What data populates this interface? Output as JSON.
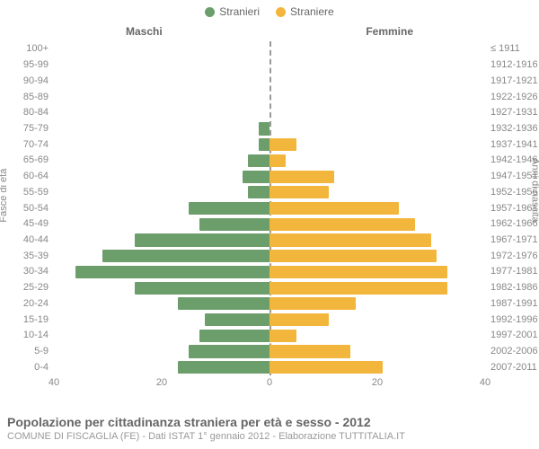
{
  "legend": {
    "male": {
      "label": "Stranieri",
      "color": "#6c9e6c"
    },
    "female": {
      "label": "Straniere",
      "color": "#f3b63c"
    }
  },
  "column_headers": {
    "male": "Maschi",
    "female": "Femmine"
  },
  "y_axis_left_title": "Fasce di età",
  "y_axis_right_title": "Anni di nascita",
  "x_axis": {
    "max": 40,
    "ticks_left": [
      40,
      20,
      0
    ],
    "ticks_right": [
      0,
      20,
      40
    ],
    "tick_labels_left": [
      "40",
      "20",
      "0"
    ],
    "tick_labels_right": [
      "0",
      "20",
      "40"
    ]
  },
  "grid_color": "#e0e0e0",
  "background_color": "#ffffff",
  "label_fontsize": 11,
  "rows": [
    {
      "age": "100+",
      "birth": "≤ 1911",
      "m": 0,
      "f": 0
    },
    {
      "age": "95-99",
      "birth": "1912-1916",
      "m": 0,
      "f": 0
    },
    {
      "age": "90-94",
      "birth": "1917-1921",
      "m": 0,
      "f": 0
    },
    {
      "age": "85-89",
      "birth": "1922-1926",
      "m": 0,
      "f": 0
    },
    {
      "age": "80-84",
      "birth": "1927-1931",
      "m": 0,
      "f": 0
    },
    {
      "age": "75-79",
      "birth": "1932-1936",
      "m": 2,
      "f": 0
    },
    {
      "age": "70-74",
      "birth": "1937-1941",
      "m": 2,
      "f": 5
    },
    {
      "age": "65-69",
      "birth": "1942-1946",
      "m": 4,
      "f": 3
    },
    {
      "age": "60-64",
      "birth": "1947-1951",
      "m": 5,
      "f": 12
    },
    {
      "age": "55-59",
      "birth": "1952-1956",
      "m": 4,
      "f": 11
    },
    {
      "age": "50-54",
      "birth": "1957-1961",
      "m": 15,
      "f": 24
    },
    {
      "age": "45-49",
      "birth": "1962-1966",
      "m": 13,
      "f": 27
    },
    {
      "age": "40-44",
      "birth": "1967-1971",
      "m": 25,
      "f": 30
    },
    {
      "age": "35-39",
      "birth": "1972-1976",
      "m": 31,
      "f": 31
    },
    {
      "age": "30-34",
      "birth": "1977-1981",
      "m": 36,
      "f": 33
    },
    {
      "age": "25-29",
      "birth": "1982-1986",
      "m": 25,
      "f": 33
    },
    {
      "age": "20-24",
      "birth": "1987-1991",
      "m": 17,
      "f": 16
    },
    {
      "age": "15-19",
      "birth": "1992-1996",
      "m": 12,
      "f": 11
    },
    {
      "age": "10-14",
      "birth": "1997-2001",
      "m": 13,
      "f": 5
    },
    {
      "age": "5-9",
      "birth": "2002-2006",
      "m": 15,
      "f": 15
    },
    {
      "age": "0-4",
      "birth": "2007-2011",
      "m": 17,
      "f": 21
    }
  ],
  "footer": {
    "title": "Popolazione per cittadinanza straniera per età e sesso - 2012",
    "subtitle": "COMUNE DI FISCAGLIA (FE) - Dati ISTAT 1° gennaio 2012 - Elaborazione TUTTITALIA.IT"
  },
  "chart_type": "population-pyramid"
}
